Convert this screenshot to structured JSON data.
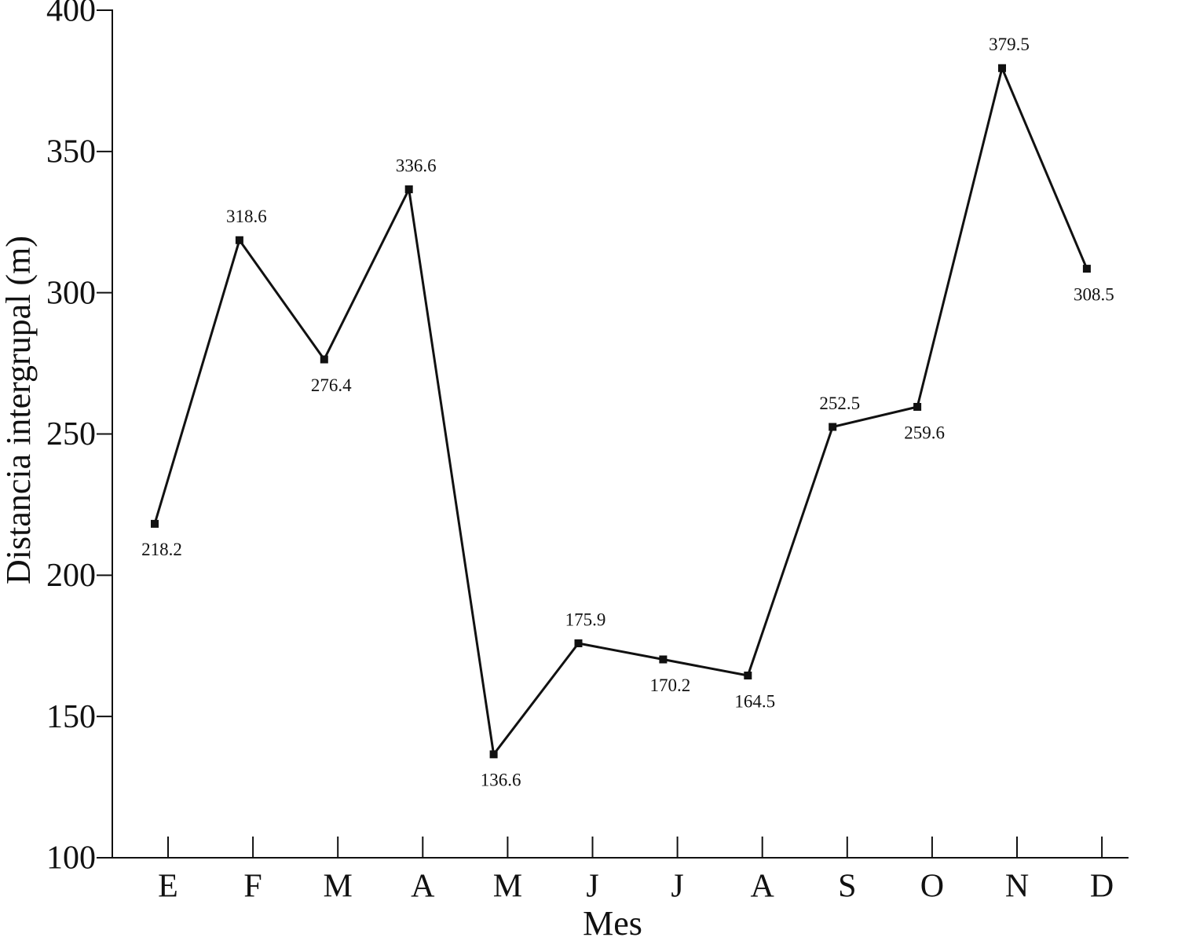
{
  "chart_data": {
    "type": "line",
    "x_label": "Mes",
    "y_label": "Distancia intergrupal (m)",
    "categories": [
      "E",
      "F",
      "M",
      "A",
      "M",
      "J",
      "J",
      "A",
      "S",
      "O",
      "N",
      "D"
    ],
    "series": [
      {
        "color": "#111111",
        "values": [
          218.2,
          318.6,
          276.4,
          336.6,
          136.6,
          175.9,
          170.2,
          164.5,
          252.5,
          259.6,
          379.5,
          308.5
        ]
      }
    ],
    "ylim": [
      100,
      400
    ],
    "yticks": [
      100,
      150,
      200,
      250,
      300,
      350,
      400
    ],
    "grid": false
  }
}
